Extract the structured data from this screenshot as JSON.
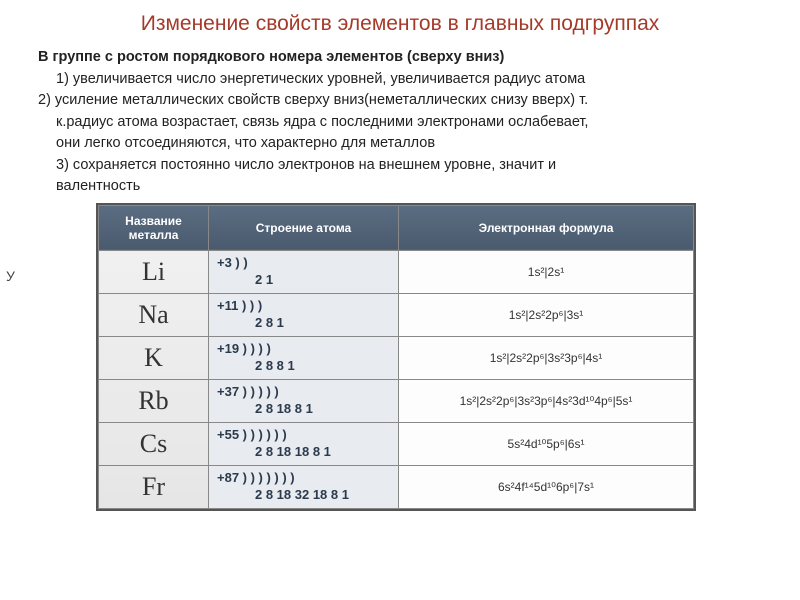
{
  "title": "Изменение свойств элементов в главных подгруппах",
  "intro": {
    "lead": "В группе с ростом порядкового номера элементов (сверху вниз)",
    "p1": "1)    увеличивается число энергетических уровней, увеличивается радиус атома",
    "p2a": "2) усиление металлических свойств сверху вниз(неметаллических снизу вверх)  т.",
    "p2b": "к.радиус атома возрастает, связь ядра с последними электронами ослабевает,",
    "p2c": "они легко отсоединяются, что характерно для металлов",
    "p3a": "3)  сохраняется   постоянно число электронов на внешнем уровне, значит и",
    "p3b": "валентность"
  },
  "ghost": "У",
  "table": {
    "headers": {
      "h1": "Название металла",
      "h2": "Строение атома",
      "h3": "Электронная формула"
    },
    "rows": [
      {
        "sym": "Li",
        "charge": "+3   )  )",
        "shells": "2  1",
        "formula": "1s²|2s¹"
      },
      {
        "sym": "Na",
        "charge": "+11  )  )  )",
        "shells": "2 8 1",
        "formula": "1s²|2s²2p⁶|3s¹"
      },
      {
        "sym": "K",
        "charge": "+19  )  )  )  )",
        "shells": "2 8 8 1",
        "formula": "1s²|2s²2p⁶|3s²3p⁶|4s¹"
      },
      {
        "sym": "Rb",
        "charge": "+37  )  )  )  )  )",
        "shells": "2 8 18 8 1",
        "formula": "1s²|2s²2p⁶|3s²3p⁶|4s²3d¹⁰4p⁶|5s¹"
      },
      {
        "sym": "Cs",
        "charge": "+55  )  )  )  )  )  )",
        "shells": "2 8 18 18 8 1",
        "formula": "5s²4d¹⁰5p⁶|6s¹"
      },
      {
        "sym": "Fr",
        "charge": "+87  )  )  )  )  )  ) )",
        "shells": "2 8  18 32 18  8 1",
        "formula": "6s²4f¹⁴5d¹⁰6p⁶|7s¹"
      }
    ]
  },
  "colors": {
    "title": "#a63a2a",
    "header_bg": "#4a5a6e",
    "header_fg": "#ffffff",
    "struct_bg": "#e8ebef",
    "border": "#888888"
  }
}
